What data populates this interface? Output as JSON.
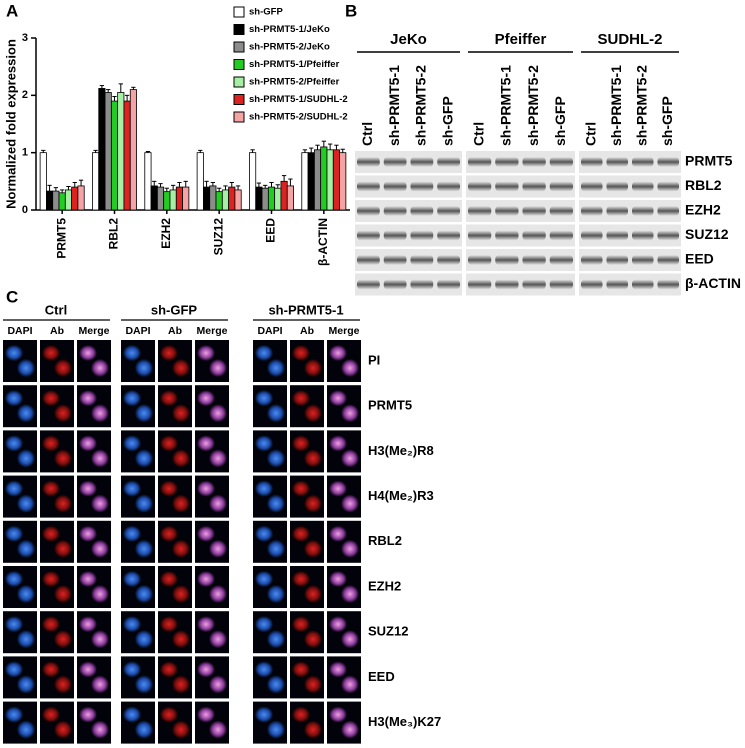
{
  "panels": {
    "a": "A",
    "b": "B",
    "c": "C"
  },
  "chart_data": {
    "type": "bar",
    "y_label": "Normalized fold expression",
    "categories": [
      "PRMT5",
      "RBL2",
      "EZH2",
      "SUZ12",
      "EED",
      "β-ACTIN"
    ],
    "series": [
      {
        "name": "sh-GFP",
        "color": "#ffffff",
        "values": [
          1.0,
          1.0,
          1.0,
          1.0,
          1.0,
          1.0
        ],
        "errors": [
          0.04,
          0.04,
          0.02,
          0.04,
          0.05,
          0.05
        ]
      },
      {
        "name": "sh-PRMT5-1/JeKo",
        "color": "#000000",
        "values": [
          0.33,
          2.12,
          0.42,
          0.4,
          0.4,
          1.0
        ],
        "errors": [
          0.1,
          0.05,
          0.08,
          0.1,
          0.07,
          0.08
        ]
      },
      {
        "name": "sh-PRMT5-2/JeKo",
        "color": "#8c8c8c",
        "values": [
          0.33,
          2.05,
          0.4,
          0.42,
          0.38,
          1.05
        ],
        "errors": [
          0.06,
          0.05,
          0.06,
          0.06,
          0.05,
          0.08
        ]
      },
      {
        "name": "sh-PRMT5-1/Pfeiffer",
        "color": "#22cc22",
        "values": [
          0.3,
          1.9,
          0.32,
          0.32,
          0.4,
          1.1
        ],
        "errors": [
          0.05,
          0.08,
          0.06,
          0.06,
          0.08,
          0.1
        ]
      },
      {
        "name": "sh-PRMT5-2/Pfeiffer",
        "color": "#a6f0a6",
        "values": [
          0.35,
          2.05,
          0.35,
          0.35,
          0.38,
          1.05
        ],
        "errors": [
          0.06,
          0.15,
          0.08,
          0.07,
          0.06,
          0.1
        ]
      },
      {
        "name": "sh-PRMT5-1/SUDHL-2",
        "color": "#dd2222",
        "values": [
          0.4,
          1.9,
          0.4,
          0.4,
          0.5,
          1.05
        ],
        "errors": [
          0.08,
          0.1,
          0.08,
          0.08,
          0.1,
          0.08
        ]
      },
      {
        "name": "sh-PRMT5-2/SUDHL-2",
        "color": "#f4a4a4",
        "values": [
          0.42,
          2.1,
          0.4,
          0.35,
          0.42,
          1.0
        ],
        "errors": [
          0.1,
          0.04,
          0.1,
          0.07,
          0.12,
          0.06
        ]
      }
    ],
    "ylim": [
      0,
      3
    ],
    "yticks": [
      0,
      1,
      2,
      3
    ]
  },
  "blot": {
    "groups": [
      {
        "name": "JeKo",
        "lanes": [
          "Ctrl",
          "sh-PRMT5-1",
          "sh-PRMT5-2",
          "sh-GFP"
        ]
      },
      {
        "name": "Pfeiffer",
        "lanes": [
          "Ctrl",
          "sh-PRMT5-1",
          "sh-PRMT5-2",
          "sh-GFP"
        ]
      },
      {
        "name": "SUDHL-2",
        "lanes": [
          "Ctrl",
          "sh-PRMT5-1",
          "sh-PRMT5-2",
          "sh-GFP"
        ]
      }
    ],
    "rows": [
      "PRMT5",
      "RBL2",
      "EZH2",
      "SUZ12",
      "EED",
      "β-ACTIN"
    ]
  },
  "microscopy": {
    "groups": [
      "Ctrl",
      "sh-GFP",
      "sh-PRMT5-1"
    ],
    "columns": [
      "DAPI",
      "Ab",
      "Merge"
    ],
    "rows": [
      "PI",
      "PRMT5",
      "H3(Me₂)R8",
      "H4(Me₂)R3",
      "RBL2",
      "EZH2",
      "SUZ12",
      "EED",
      "H3(Me₃)K27"
    ]
  }
}
